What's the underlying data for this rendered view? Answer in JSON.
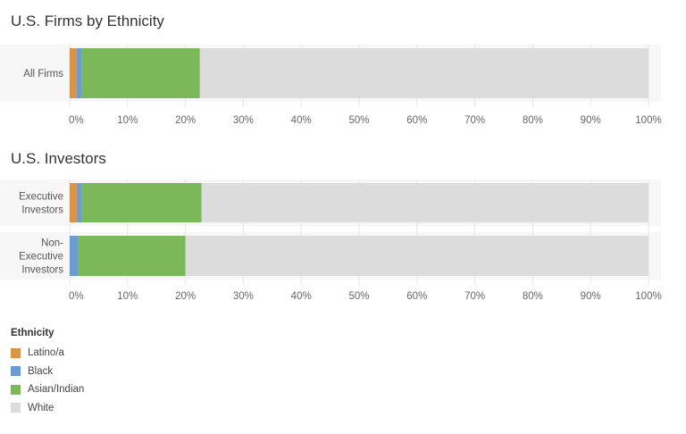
{
  "chart_data": [
    {
      "type": "bar",
      "orientation": "horizontal",
      "stacked": true,
      "title": "U.S. Firms by Ethnicity",
      "categories": [
        "All Firms"
      ],
      "series": [
        {
          "name": "Latino/a",
          "values": [
            1.2
          ]
        },
        {
          "name": "Black",
          "values": [
            0.8
          ]
        },
        {
          "name": "Asian/Indian",
          "values": [
            20.5
          ]
        },
        {
          "name": "White",
          "values": [
            77.5
          ]
        }
      ],
      "xlim": [
        0,
        100
      ],
      "xticks": [
        "0%",
        "10%",
        "20%",
        "30%",
        "40%",
        "50%",
        "60%",
        "70%",
        "80%",
        "90%",
        "100%"
      ],
      "grid": "vertical",
      "legend": "bottom-left"
    },
    {
      "type": "bar",
      "orientation": "horizontal",
      "stacked": true,
      "title": "U.S. Investors",
      "categories": [
        [
          "Executive",
          "Investors"
        ],
        [
          "Non-",
          "Executive",
          "Investors"
        ]
      ],
      "series": [
        {
          "name": "Latino/a",
          "values": [
            1.3,
            0
          ]
        },
        {
          "name": "Black",
          "values": [
            0.7,
            1.5
          ]
        },
        {
          "name": "Asian/Indian",
          "values": [
            20.8,
            18.5
          ]
        },
        {
          "name": "White",
          "values": [
            77.2,
            80.0
          ]
        }
      ],
      "xlim": [
        0,
        100
      ],
      "xticks": [
        "0%",
        "10%",
        "20%",
        "30%",
        "40%",
        "50%",
        "60%",
        "70%",
        "80%",
        "90%",
        "100%"
      ],
      "grid": "vertical",
      "legend": "bottom-left"
    }
  ],
  "legend": {
    "title": "Ethnicity",
    "items": [
      {
        "label": "Latino/a",
        "color": "#d99447"
      },
      {
        "label": "Black",
        "color": "#6a9bd1"
      },
      {
        "label": "Asian/Indian",
        "color": "#7ab859"
      },
      {
        "label": "White",
        "color": "#dcdcdc"
      }
    ]
  }
}
